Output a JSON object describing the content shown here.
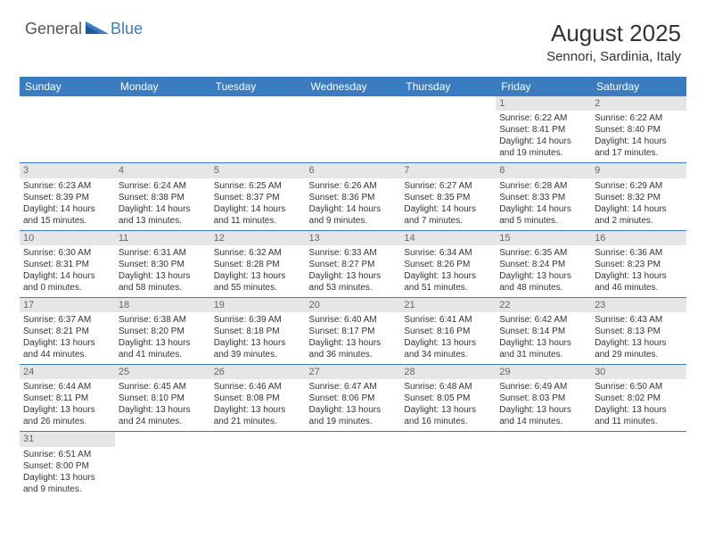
{
  "logo": {
    "general": "General",
    "blue": "Blue"
  },
  "title": "August 2025",
  "location": "Sennori, Sardinia, Italy",
  "headerColor": "#3b7bbf",
  "dayHeaders": [
    "Sunday",
    "Monday",
    "Tuesday",
    "Wednesday",
    "Thursday",
    "Friday",
    "Saturday"
  ],
  "weeks": [
    [
      null,
      null,
      null,
      null,
      null,
      {
        "n": "1",
        "sr": "Sunrise: 6:22 AM",
        "ss": "Sunset: 8:41 PM",
        "dl": "Daylight: 14 hours and 19 minutes."
      },
      {
        "n": "2",
        "sr": "Sunrise: 6:22 AM",
        "ss": "Sunset: 8:40 PM",
        "dl": "Daylight: 14 hours and 17 minutes."
      }
    ],
    [
      {
        "n": "3",
        "sr": "Sunrise: 6:23 AM",
        "ss": "Sunset: 8:39 PM",
        "dl": "Daylight: 14 hours and 15 minutes."
      },
      {
        "n": "4",
        "sr": "Sunrise: 6:24 AM",
        "ss": "Sunset: 8:38 PM",
        "dl": "Daylight: 14 hours and 13 minutes."
      },
      {
        "n": "5",
        "sr": "Sunrise: 6:25 AM",
        "ss": "Sunset: 8:37 PM",
        "dl": "Daylight: 14 hours and 11 minutes."
      },
      {
        "n": "6",
        "sr": "Sunrise: 6:26 AM",
        "ss": "Sunset: 8:36 PM",
        "dl": "Daylight: 14 hours and 9 minutes."
      },
      {
        "n": "7",
        "sr": "Sunrise: 6:27 AM",
        "ss": "Sunset: 8:35 PM",
        "dl": "Daylight: 14 hours and 7 minutes."
      },
      {
        "n": "8",
        "sr": "Sunrise: 6:28 AM",
        "ss": "Sunset: 8:33 PM",
        "dl": "Daylight: 14 hours and 5 minutes."
      },
      {
        "n": "9",
        "sr": "Sunrise: 6:29 AM",
        "ss": "Sunset: 8:32 PM",
        "dl": "Daylight: 14 hours and 2 minutes."
      }
    ],
    [
      {
        "n": "10",
        "sr": "Sunrise: 6:30 AM",
        "ss": "Sunset: 8:31 PM",
        "dl": "Daylight: 14 hours and 0 minutes."
      },
      {
        "n": "11",
        "sr": "Sunrise: 6:31 AM",
        "ss": "Sunset: 8:30 PM",
        "dl": "Daylight: 13 hours and 58 minutes."
      },
      {
        "n": "12",
        "sr": "Sunrise: 6:32 AM",
        "ss": "Sunset: 8:28 PM",
        "dl": "Daylight: 13 hours and 55 minutes."
      },
      {
        "n": "13",
        "sr": "Sunrise: 6:33 AM",
        "ss": "Sunset: 8:27 PM",
        "dl": "Daylight: 13 hours and 53 minutes."
      },
      {
        "n": "14",
        "sr": "Sunrise: 6:34 AM",
        "ss": "Sunset: 8:26 PM",
        "dl": "Daylight: 13 hours and 51 minutes."
      },
      {
        "n": "15",
        "sr": "Sunrise: 6:35 AM",
        "ss": "Sunset: 8:24 PM",
        "dl": "Daylight: 13 hours and 48 minutes."
      },
      {
        "n": "16",
        "sr": "Sunrise: 6:36 AM",
        "ss": "Sunset: 8:23 PM",
        "dl": "Daylight: 13 hours and 46 minutes."
      }
    ],
    [
      {
        "n": "17",
        "sr": "Sunrise: 6:37 AM",
        "ss": "Sunset: 8:21 PM",
        "dl": "Daylight: 13 hours and 44 minutes."
      },
      {
        "n": "18",
        "sr": "Sunrise: 6:38 AM",
        "ss": "Sunset: 8:20 PM",
        "dl": "Daylight: 13 hours and 41 minutes."
      },
      {
        "n": "19",
        "sr": "Sunrise: 6:39 AM",
        "ss": "Sunset: 8:18 PM",
        "dl": "Daylight: 13 hours and 39 minutes."
      },
      {
        "n": "20",
        "sr": "Sunrise: 6:40 AM",
        "ss": "Sunset: 8:17 PM",
        "dl": "Daylight: 13 hours and 36 minutes."
      },
      {
        "n": "21",
        "sr": "Sunrise: 6:41 AM",
        "ss": "Sunset: 8:16 PM",
        "dl": "Daylight: 13 hours and 34 minutes."
      },
      {
        "n": "22",
        "sr": "Sunrise: 6:42 AM",
        "ss": "Sunset: 8:14 PM",
        "dl": "Daylight: 13 hours and 31 minutes."
      },
      {
        "n": "23",
        "sr": "Sunrise: 6:43 AM",
        "ss": "Sunset: 8:13 PM",
        "dl": "Daylight: 13 hours and 29 minutes."
      }
    ],
    [
      {
        "n": "24",
        "sr": "Sunrise: 6:44 AM",
        "ss": "Sunset: 8:11 PM",
        "dl": "Daylight: 13 hours and 26 minutes."
      },
      {
        "n": "25",
        "sr": "Sunrise: 6:45 AM",
        "ss": "Sunset: 8:10 PM",
        "dl": "Daylight: 13 hours and 24 minutes."
      },
      {
        "n": "26",
        "sr": "Sunrise: 6:46 AM",
        "ss": "Sunset: 8:08 PM",
        "dl": "Daylight: 13 hours and 21 minutes."
      },
      {
        "n": "27",
        "sr": "Sunrise: 6:47 AM",
        "ss": "Sunset: 8:06 PM",
        "dl": "Daylight: 13 hours and 19 minutes."
      },
      {
        "n": "28",
        "sr": "Sunrise: 6:48 AM",
        "ss": "Sunset: 8:05 PM",
        "dl": "Daylight: 13 hours and 16 minutes."
      },
      {
        "n": "29",
        "sr": "Sunrise: 6:49 AM",
        "ss": "Sunset: 8:03 PM",
        "dl": "Daylight: 13 hours and 14 minutes."
      },
      {
        "n": "30",
        "sr": "Sunrise: 6:50 AM",
        "ss": "Sunset: 8:02 PM",
        "dl": "Daylight: 13 hours and 11 minutes."
      }
    ],
    [
      {
        "n": "31",
        "sr": "Sunrise: 6:51 AM",
        "ss": "Sunset: 8:00 PM",
        "dl": "Daylight: 13 hours and 9 minutes."
      },
      null,
      null,
      null,
      null,
      null,
      null
    ]
  ]
}
